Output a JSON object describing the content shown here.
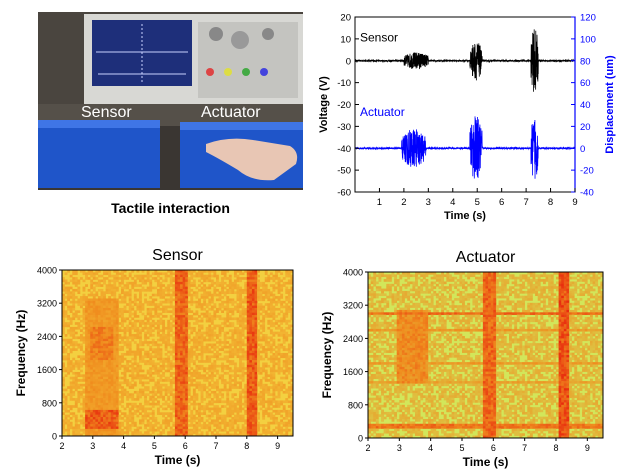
{
  "photo": {
    "sensor_label": "Sensor",
    "actuator_label": "Actuator",
    "caption": "Tactile interaction"
  },
  "chart_data": [
    {
      "type": "line",
      "title": "",
      "xlabel": "Time (s)",
      "ylabel": "Voltage (V)",
      "y2label": "Displacement (um)",
      "xlim": [
        0,
        9
      ],
      "ylim": [
        -60,
        20
      ],
      "y2lim": [
        -40,
        120
      ],
      "xticks": [
        1,
        2,
        3,
        4,
        5,
        6,
        7,
        8,
        9
      ],
      "yticks": [
        20,
        10,
        0,
        -10,
        -20,
        -30,
        -40,
        -50,
        -60
      ],
      "y2ticks": [
        120,
        100,
        80,
        60,
        40,
        20,
        0,
        -20,
        -40
      ],
      "series": [
        {
          "name": "Sensor",
          "axis": "left",
          "color": "#000000",
          "baseline": 0,
          "bursts": [
            {
              "start": 2.0,
              "end": 3.0,
              "amplitude": 4
            },
            {
              "start": 4.7,
              "end": 5.2,
              "amplitude": 9
            },
            {
              "start": 7.2,
              "end": 7.5,
              "amplitude": 15
            }
          ]
        },
        {
          "name": "Actuator",
          "axis": "left",
          "color": "#0000ff",
          "baseline": -40,
          "bursts": [
            {
              "start": 1.9,
              "end": 2.9,
              "amplitude": 9
            },
            {
              "start": 4.7,
              "end": 5.2,
              "amplitude": 15
            },
            {
              "start": 7.2,
              "end": 7.5,
              "amplitude": 15
            }
          ]
        }
      ]
    },
    {
      "type": "heatmap",
      "title": "Sensor",
      "xlabel": "Time (s)",
      "ylabel": "Frequency (Hz)",
      "xlim": [
        2,
        9.5
      ],
      "ylim": [
        0,
        4000
      ],
      "xticks": [
        2,
        3,
        4,
        5,
        6,
        7,
        8,
        9
      ],
      "yticks": [
        0,
        800,
        1600,
        2400,
        3200,
        4000
      ],
      "background": "#f3d040",
      "bands": [
        {
          "start": 2.75,
          "end": 3.8,
          "fmin": 0,
          "fmax": 3300,
          "intensity": 0.5
        },
        {
          "start": 2.9,
          "end": 3.7,
          "fmin": 1800,
          "fmax": 2600,
          "intensity": 0.65
        },
        {
          "start": 2.75,
          "end": 3.8,
          "fmin": 200,
          "fmax": 650,
          "intensity": 0.85
        },
        {
          "start": 5.65,
          "end": 6.1,
          "fmin": 0,
          "fmax": 4000,
          "intensity": 0.8
        },
        {
          "start": 8.0,
          "end": 8.35,
          "fmin": 0,
          "fmax": 4000,
          "intensity": 0.85
        }
      ]
    },
    {
      "type": "heatmap",
      "title": "Actuator",
      "xlabel": "Time (s)",
      "ylabel": "Frequency (Hz)",
      "xlim": [
        2,
        9.5
      ],
      "ylim": [
        0,
        4000
      ],
      "xticks": [
        2,
        3,
        4,
        5,
        6,
        7,
        8,
        9
      ],
      "yticks": [
        0,
        800,
        1600,
        2400,
        3200,
        4000
      ],
      "background": "#d2e65a",
      "rows": [
        {
          "freq": 3000,
          "intensity": 0.75
        },
        {
          "freq": 2600,
          "intensity": 0.5
        },
        {
          "freq": 1800,
          "intensity": 0.5
        },
        {
          "freq": 1350,
          "intensity": 0.45
        },
        {
          "freq": 300,
          "intensity": 0.7
        }
      ],
      "bands": [
        {
          "start": 2.9,
          "end": 3.9,
          "fmin": 1300,
          "fmax": 3100,
          "intensity": 0.6
        },
        {
          "start": 5.65,
          "end": 6.1,
          "fmin": 0,
          "fmax": 4000,
          "intensity": 0.8
        },
        {
          "start": 8.1,
          "end": 8.45,
          "fmin": 0,
          "fmax": 4000,
          "intensity": 0.9
        }
      ]
    }
  ]
}
